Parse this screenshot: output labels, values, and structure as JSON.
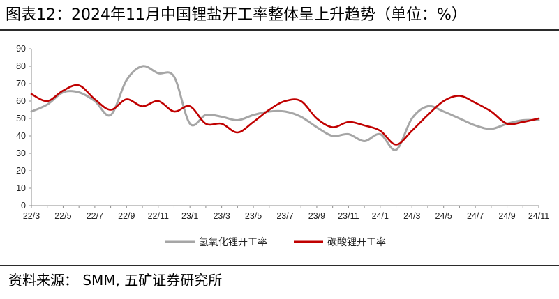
{
  "header": {
    "title": "图表12：2024年11月中国锂盐开工率整体呈上升趋势（单位：%）"
  },
  "footer": {
    "source": "资料来源：  SMM, 五矿证券研究所"
  },
  "chart_data": {
    "type": "line",
    "x_tick_labels": [
      "22/3",
      "22/5",
      "22/7",
      "22/9",
      "22/11",
      "23/1",
      "23/3",
      "23/5",
      "23/7",
      "23/9",
      "23/11",
      "24/1",
      "24/3",
      "24/5",
      "24/7",
      "24/9",
      "24/11"
    ],
    "x": [
      "22/3",
      "22/4",
      "22/5",
      "22/6",
      "22/7",
      "22/8",
      "22/9",
      "22/10",
      "22/11",
      "22/12",
      "23/1",
      "23/2",
      "23/3",
      "23/4",
      "23/5",
      "23/6",
      "23/7",
      "23/8",
      "23/9",
      "23/10",
      "23/11",
      "23/12",
      "24/1",
      "24/2",
      "24/3",
      "24/4",
      "24/5",
      "24/6",
      "24/7",
      "24/8",
      "24/9",
      "24/10",
      "24/11"
    ],
    "ylim": [
      0,
      90
    ],
    "y_ticks": [
      0,
      10,
      20,
      30,
      40,
      50,
      60,
      70,
      80,
      90
    ],
    "grid": false,
    "legend_position": "bottom",
    "series": [
      {
        "name": "氢氧化锂开工率",
        "color": "#a6a6a6",
        "values": [
          54,
          58,
          65,
          65,
          60,
          52,
          72,
          80,
          76,
          74,
          47,
          52,
          51,
          49,
          52,
          54,
          54,
          51,
          45,
          40,
          41,
          37,
          41,
          32,
          50,
          57,
          54,
          50,
          46,
          44,
          47,
          49,
          49
        ]
      },
      {
        "name": "碳酸锂开工率",
        "color": "#c00000",
        "values": [
          64,
          60,
          66,
          69,
          61,
          55,
          61,
          57,
          60,
          54,
          57,
          47,
          47,
          42,
          48,
          55,
          60,
          60,
          50,
          45,
          48,
          46,
          43,
          35,
          43,
          52,
          60,
          63,
          59,
          54,
          47,
          48,
          50
        ]
      }
    ]
  }
}
